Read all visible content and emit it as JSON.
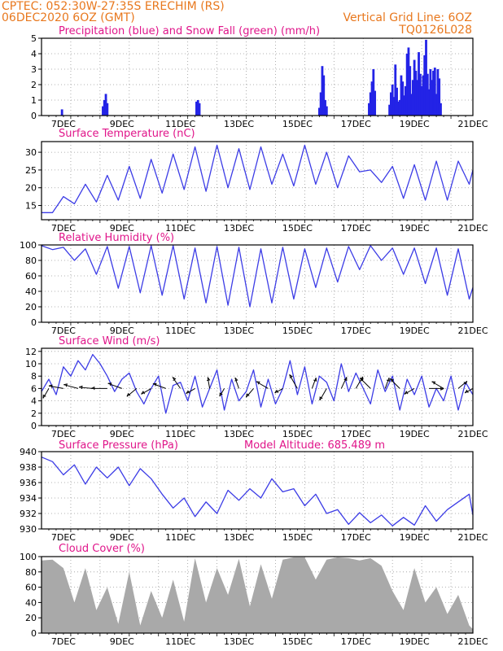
{
  "header": {
    "line1": "CPTEC:   052:30W-27:35S   ERECHIM (RS)",
    "line2": "06DEC2020 6OZ (GMT)",
    "vgrid": "Vertical Grid Line: 6OZ",
    "code": "TQ0126L028"
  },
  "colors": {
    "header_text": "#e8781e",
    "title_text": "#e0158a",
    "precip": "#2323e6",
    "snow": "#2ca02c",
    "line": "#3c3ce6",
    "cloud": "#a9a9a9",
    "arrow": "#000000"
  },
  "x_axis": {
    "start": "06DEC2020 06Z",
    "end": "21DEC2020 00Z",
    "labels": [
      "7DEC",
      "9DEC",
      "11DEC",
      "13DEC",
      "15DEC",
      "17DEC",
      "19DEC",
      "21DEC"
    ],
    "label_days": [
      0.75,
      2.75,
      4.75,
      6.75,
      8.75,
      10.75,
      12.75,
      14.75
    ],
    "grid_step_days": 1
  },
  "chart_data": [
    {
      "type": "bar",
      "title": "Precipitation (blue) and Snow Fall (green) (mm/h)",
      "ylim": [
        0,
        5
      ],
      "yticks": [
        0,
        1,
        2,
        3,
        4,
        5
      ],
      "series": [
        {
          "name": "Precipitation",
          "points": [
            [
              0.7,
              0.4
            ],
            [
              2.1,
              0.6
            ],
            [
              2.15,
              1.0
            ],
            [
              2.2,
              1.4
            ],
            [
              2.25,
              0.8
            ],
            [
              5.3,
              0.9
            ],
            [
              5.35,
              1.0
            ],
            [
              5.4,
              0.8
            ],
            [
              9.5,
              0.5
            ],
            [
              9.55,
              1.5
            ],
            [
              9.6,
              3.2
            ],
            [
              9.65,
              2.6
            ],
            [
              9.7,
              1.0
            ],
            [
              9.75,
              0.6
            ],
            [
              11.2,
              0.8
            ],
            [
              11.25,
              1.5
            ],
            [
              11.3,
              2.2
            ],
            [
              11.35,
              3.0
            ],
            [
              11.4,
              1.6
            ],
            [
              11.9,
              0.7
            ],
            [
              11.95,
              1.5
            ],
            [
              12.0,
              2.0
            ],
            [
              12.05,
              1.2
            ],
            [
              12.1,
              3.3
            ],
            [
              12.15,
              1.8
            ],
            [
              12.2,
              0.9
            ],
            [
              12.25,
              1.0
            ],
            [
              12.3,
              2.6
            ],
            [
              12.35,
              2.2
            ],
            [
              12.4,
              1.3
            ],
            [
              12.45,
              1.9
            ],
            [
              12.5,
              4.0
            ],
            [
              12.55,
              4.4
            ],
            [
              12.6,
              3.2
            ],
            [
              12.65,
              1.4
            ],
            [
              12.7,
              2.3
            ],
            [
              12.75,
              3.6
            ],
            [
              12.8,
              2.9
            ],
            [
              12.85,
              2.3
            ],
            [
              12.9,
              4.1
            ],
            [
              12.95,
              2.7
            ],
            [
              13.0,
              1.9
            ],
            [
              13.05,
              2.6
            ],
            [
              13.1,
              3.9
            ],
            [
              13.15,
              4.9
            ],
            [
              13.2,
              2.7
            ],
            [
              13.25,
              1.7
            ],
            [
              13.3,
              3.0
            ],
            [
              13.35,
              2.3
            ],
            [
              13.4,
              2.9
            ],
            [
              13.45,
              3.1
            ],
            [
              13.5,
              1.4
            ],
            [
              13.55,
              3.0
            ],
            [
              13.6,
              2.4
            ],
            [
              13.65,
              0.8
            ]
          ]
        },
        {
          "name": "Snow Fall",
          "points": [
            [
              1.0,
              0.02
            ],
            [
              3.0,
              0.02
            ],
            [
              5.0,
              0.02
            ],
            [
              7.0,
              0.02
            ],
            [
              10.5,
              0.02
            ],
            [
              11.5,
              0.02
            ],
            [
              12.5,
              0.02
            ],
            [
              13.0,
              0.02
            ]
          ]
        }
      ]
    },
    {
      "type": "line",
      "title": "Surface Temperature (nC)",
      "ylim": [
        11,
        33
      ],
      "yticks": [
        15,
        20,
        25,
        30
      ],
      "x": [
        0,
        0.375,
        0.75,
        1.125,
        1.5,
        1.875,
        2.25,
        2.625,
        3.0,
        3.375,
        3.75,
        4.125,
        4.5,
        4.875,
        5.25,
        5.625,
        6.0,
        6.375,
        6.75,
        7.125,
        7.5,
        7.875,
        8.25,
        8.625,
        9.0,
        9.375,
        9.75,
        10.125,
        10.5,
        10.875,
        11.25,
        11.625,
        12.0,
        12.375,
        12.75,
        13.125,
        13.5,
        13.875,
        14.25,
        14.625,
        14.75
      ],
      "values": [
        13.0,
        13.0,
        17.5,
        15.5,
        21.0,
        16.0,
        23.5,
        16.5,
        26.0,
        17.0,
        28.0,
        18.5,
        29.5,
        19.5,
        31.5,
        19.0,
        32.0,
        20.0,
        31.0,
        19.5,
        31.5,
        21.0,
        29.5,
        20.5,
        32.0,
        21.0,
        30.0,
        20.0,
        29.0,
        24.5,
        25.0,
        21.5,
        26.0,
        17.0,
        26.5,
        16.5,
        27.5,
        16.5,
        27.5,
        21.0,
        25.0
      ]
    },
    {
      "type": "line",
      "title": "Relative Humidity (%)",
      "ylim": [
        0,
        100
      ],
      "yticks": [
        0,
        20,
        40,
        60,
        80,
        100
      ],
      "x": [
        0,
        0.375,
        0.75,
        1.125,
        1.5,
        1.875,
        2.25,
        2.625,
        3.0,
        3.375,
        3.75,
        4.125,
        4.5,
        4.875,
        5.25,
        5.625,
        6.0,
        6.375,
        6.75,
        7.125,
        7.5,
        7.875,
        8.25,
        8.625,
        9.0,
        9.375,
        9.75,
        10.125,
        10.5,
        10.875,
        11.25,
        11.625,
        12.0,
        12.375,
        12.75,
        13.125,
        13.5,
        13.875,
        14.25,
        14.625,
        14.75
      ],
      "values": [
        99,
        94,
        97,
        80,
        95,
        62,
        98,
        44,
        98,
        38,
        99,
        35,
        99,
        30,
        96,
        25,
        98,
        22,
        97,
        20,
        95,
        25,
        97,
        30,
        95,
        45,
        96,
        52,
        98,
        68,
        99,
        80,
        96,
        62,
        96,
        50,
        96,
        35,
        95,
        30,
        45
      ]
    },
    {
      "type": "line",
      "title": "Surface Wind (m/s)",
      "ylim": [
        0,
        12.5
      ],
      "yticks": [
        0,
        2,
        4,
        6,
        8,
        10,
        12
      ],
      "x": [
        0,
        0.25,
        0.5,
        0.75,
        1.0,
        1.25,
        1.5,
        1.75,
        2.0,
        2.25,
        2.5,
        2.75,
        3.0,
        3.25,
        3.5,
        3.75,
        4.0,
        4.25,
        4.5,
        4.75,
        5.0,
        5.25,
        5.5,
        5.75,
        6.0,
        6.25,
        6.5,
        6.75,
        7.0,
        7.25,
        7.5,
        7.75,
        8.0,
        8.25,
        8.5,
        8.75,
        9.0,
        9.25,
        9.5,
        9.75,
        10.0,
        10.25,
        10.5,
        10.75,
        11.0,
        11.25,
        11.5,
        11.75,
        12.0,
        12.25,
        12.5,
        12.75,
        13.0,
        13.25,
        13.5,
        13.75,
        14.0,
        14.25,
        14.5,
        14.75
      ],
      "values": [
        5.5,
        7.5,
        5.0,
        9.5,
        8.0,
        10.5,
        9.0,
        11.5,
        10.0,
        8.0,
        5.5,
        7.5,
        8.5,
        5.5,
        3.5,
        6.0,
        8.0,
        2.0,
        6.5,
        7.0,
        4.0,
        8.0,
        3.0,
        6.0,
        9.0,
        2.5,
        7.5,
        4.0,
        5.5,
        9.0,
        3.0,
        7.5,
        3.5,
        6.0,
        10.5,
        5.0,
        9.5,
        3.5,
        8.0,
        7.0,
        4.0,
        10.0,
        5.5,
        8.5,
        6.0,
        3.5,
        9.0,
        5.5,
        8.0,
        2.5,
        7.5,
        5.0,
        8.0,
        3.0,
        6.0,
        4.0,
        8.0,
        2.5,
        7.0,
        5.0
      ],
      "vectors": [
        {
          "x": 0.25,
          "dir": 330,
          "spd": 1.0
        },
        {
          "x": 0.75,
          "dir": 260,
          "spd": 1.3
        },
        {
          "x": 1.25,
          "dir": 255,
          "spd": 1.3
        },
        {
          "x": 1.75,
          "dir": 265,
          "spd": 1.2
        },
        {
          "x": 2.25,
          "dir": 270,
          "spd": 1.4
        },
        {
          "x": 2.75,
          "dir": 250,
          "spd": 1.3
        },
        {
          "x": 3.25,
          "dir": 310,
          "spd": 1.1
        },
        {
          "x": 3.75,
          "dir": 300,
          "spd": 1.0
        },
        {
          "x": 4.25,
          "dir": 250,
          "spd": 1.2
        },
        {
          "x": 4.75,
          "dir": 215,
          "spd": 1.2
        },
        {
          "x": 5.25,
          "dir": 300,
          "spd": 0.9
        },
        {
          "x": 5.75,
          "dir": 190,
          "spd": 1.0
        },
        {
          "x": 6.25,
          "dir": 330,
          "spd": 0.8
        },
        {
          "x": 6.75,
          "dir": 200,
          "spd": 1.0
        },
        {
          "x": 7.25,
          "dir": 320,
          "spd": 1.0
        },
        {
          "x": 7.75,
          "dir": 240,
          "spd": 1.2
        },
        {
          "x": 8.25,
          "dir": 300,
          "spd": 0.8
        },
        {
          "x": 8.75,
          "dir": 210,
          "spd": 1.4
        },
        {
          "x": 9.25,
          "dir": 160,
          "spd": 1.0
        },
        {
          "x": 9.75,
          "dir": 330,
          "spd": 1.2
        },
        {
          "x": 10.25,
          "dir": 155,
          "spd": 1.1
        },
        {
          "x": 10.75,
          "dir": 150,
          "spd": 1.2
        },
        {
          "x": 11.25,
          "dir": 225,
          "spd": 1.3
        },
        {
          "x": 11.75,
          "dir": 160,
          "spd": 1.0
        },
        {
          "x": 12.25,
          "dir": 225,
          "spd": 1.2
        },
        {
          "x": 12.75,
          "dir": 300,
          "spd": 1.0
        },
        {
          "x": 13.25,
          "dir": 90,
          "spd": 1.3
        },
        {
          "x": 13.75,
          "dir": 240,
          "spd": 1.2
        },
        {
          "x": 14.25,
          "dir": 130,
          "spd": 1.0
        },
        {
          "x": 14.75,
          "dir": 300,
          "spd": 0.8
        }
      ]
    },
    {
      "type": "line",
      "title": "Surface Pressure (hPa)",
      "ylim": [
        930,
        940
      ],
      "yticks": [
        930,
        932,
        934,
        936,
        938,
        940
      ],
      "x": [
        0,
        0.375,
        0.75,
        1.125,
        1.5,
        1.875,
        2.25,
        2.625,
        3.0,
        3.375,
        3.75,
        4.125,
        4.5,
        4.875,
        5.25,
        5.625,
        6.0,
        6.375,
        6.75,
        7.125,
        7.5,
        7.875,
        8.25,
        8.625,
        9.0,
        9.375,
        9.75,
        10.125,
        10.5,
        10.875,
        11.25,
        11.625,
        12.0,
        12.375,
        12.75,
        13.125,
        13.5,
        13.875,
        14.25,
        14.625,
        14.75
      ],
      "values": [
        939.3,
        938.7,
        937.0,
        938.3,
        935.8,
        938.0,
        936.6,
        938.0,
        935.6,
        937.8,
        936.5,
        934.5,
        932.7,
        934.0,
        931.6,
        933.5,
        932.0,
        935.0,
        933.7,
        935.2,
        934.0,
        936.5,
        934.8,
        935.2,
        933.0,
        934.5,
        932.0,
        932.5,
        930.6,
        932.1,
        930.8,
        931.8,
        930.4,
        931.5,
        930.5,
        933.0,
        931.0,
        932.5,
        933.5,
        934.5,
        931.8
      ]
    },
    {
      "type": "area",
      "title": "Cloud Cover (%)",
      "ylim": [
        0,
        100
      ],
      "yticks": [
        0,
        20,
        40,
        60,
        80,
        100
      ],
      "x": [
        0,
        0.375,
        0.75,
        1.125,
        1.5,
        1.875,
        2.25,
        2.625,
        3.0,
        3.375,
        3.75,
        4.125,
        4.5,
        4.875,
        5.25,
        5.625,
        6.0,
        6.375,
        6.75,
        7.125,
        7.5,
        7.875,
        8.25,
        8.625,
        9.0,
        9.375,
        9.75,
        10.125,
        10.5,
        10.875,
        11.25,
        11.625,
        12.0,
        12.375,
        12.75,
        13.125,
        13.5,
        13.875,
        14.25,
        14.625,
        14.75
      ],
      "values": [
        95,
        96,
        85,
        40,
        85,
        30,
        60,
        12,
        80,
        10,
        55,
        20,
        70,
        15,
        98,
        40,
        85,
        50,
        97,
        35,
        90,
        45,
        96,
        99,
        99,
        70,
        96,
        99,
        98,
        95,
        98,
        88,
        55,
        30,
        85,
        40,
        60,
        25,
        50,
        10,
        5
      ]
    }
  ],
  "titles": {
    "p1": "Precipitation (blue) and Snow Fall (green) (mm/h)",
    "p2": "Surface Temperature (nC)",
    "p3": "Relative Humidity (%)",
    "p4": "Surface Wind (m/s)",
    "p5": "Surface Pressure (hPa)",
    "p5b": "Model Altitude: 685.489 m",
    "p6": "Cloud Cover (%)"
  }
}
